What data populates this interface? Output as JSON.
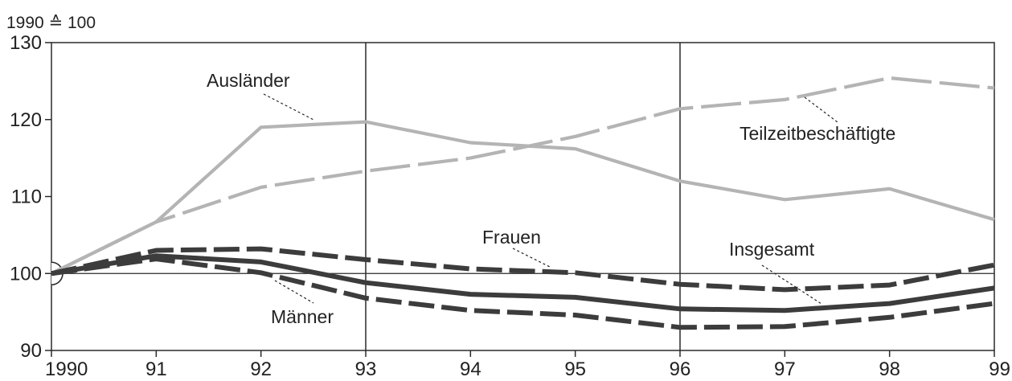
{
  "chart_data": {
    "type": "line",
    "unit_label": "1990 ≙ 100",
    "categories": [
      "1990",
      "91",
      "92",
      "93",
      "94",
      "95",
      "96",
      "97",
      "98",
      "99"
    ],
    "yticks": [
      "90",
      "100",
      "110",
      "120",
      "130"
    ],
    "ylim": [
      90,
      130
    ],
    "reference_value": 100,
    "xlabel": "",
    "ylabel": "",
    "series": [
      {
        "name": "Ausländer",
        "values": [
          100,
          106.7,
          119,
          119.7,
          117,
          116.2,
          112,
          109.6,
          111,
          107
        ],
        "color": "#b4b4b4",
        "style": "solid"
      },
      {
        "name": "Teilzeitbeschäftigte",
        "values": [
          100,
          106.7,
          111.2,
          113.3,
          115,
          117.8,
          121.4,
          122.6,
          125.4,
          124.1
        ],
        "color": "#b4b4b4",
        "style": "dashed"
      },
      {
        "name": "Frauen",
        "values": [
          100,
          103,
          103.2,
          101.8,
          100.6,
          100.1,
          98.6,
          97.9,
          98.5,
          101.1
        ],
        "color": "#3c3c3c",
        "style": "dashed"
      },
      {
        "name": "Insgesamt",
        "values": [
          100,
          102.3,
          101.5,
          98.8,
          97.3,
          96.9,
          95.4,
          95.2,
          96.1,
          98.1
        ],
        "color": "#3c3c3c",
        "style": "solid"
      },
      {
        "name": "Männer",
        "values": [
          100,
          101.9,
          100.1,
          96.8,
          95.2,
          94.6,
          93,
          93.1,
          94.3,
          96.1
        ],
        "color": "#3c3c3c",
        "style": "dashed"
      }
    ],
    "vertical_markers": [
      "93",
      "96"
    ]
  }
}
